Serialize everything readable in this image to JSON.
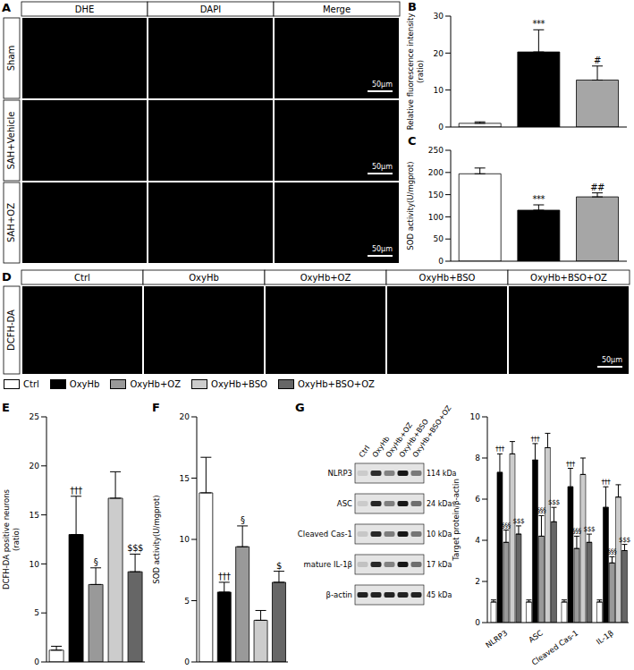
{
  "figure": {
    "A": {
      "panel_label": "A",
      "columns": [
        "DHE",
        "DAPI",
        "Merge"
      ],
      "rows": [
        "Sham",
        "SAH+Vehicle",
        "SAH+OZ"
      ],
      "scale_bar": "50μm"
    },
    "D": {
      "panel_label": "D",
      "row": "DCFH-DA",
      "columns": [
        "Ctrl",
        "OxyHb",
        "OxyHb+OZ",
        "OxyHb+BSO",
        "OxyHb+BSO+OZ"
      ],
      "scale_bar": "50μm"
    },
    "G_blot": {
      "columns": [
        "Ctrl",
        "OxyHb",
        "OxyHb+OZ",
        "OxyHb+BSO",
        "OxyHb+BSO+OZ"
      ],
      "rows": [
        {
          "name": "NLRP3",
          "size": "114 kDa"
        },
        {
          "name": "ASC",
          "size": "24 kDa"
        },
        {
          "name": "Cleaved Cas-1",
          "size": "10 kDa"
        },
        {
          "name": "mature IL-1β",
          "size": "17 kDa"
        },
        {
          "name": "β-actin",
          "size": "45 kDa"
        }
      ]
    }
  },
  "chart_data": [
    {
      "panel_label": "B",
      "type": "bar",
      "ylabel": "Relative fluorescence intensity (ratio)",
      "categories": [
        null,
        null,
        null
      ],
      "values": [
        1.0,
        20.3,
        12.7
      ],
      "errors": [
        0.4,
        6.0,
        3.8
      ],
      "sig_labels": [
        null,
        "***",
        "#"
      ],
      "colors": [
        "#ffffff",
        "#000000",
        "#a6a6a6"
      ],
      "ylim": [
        0,
        30
      ],
      "yticks": [
        0,
        10,
        20,
        30
      ],
      "tick_labels": "y"
    },
    {
      "panel_label": "C",
      "type": "bar",
      "ylabel": "SOD activity(U/mgprot)",
      "categories": [
        null,
        null,
        null
      ],
      "values": [
        197,
        115,
        145
      ],
      "errors": [
        13,
        12,
        9
      ],
      "sig_labels": [
        null,
        "***",
        "##"
      ],
      "colors": [
        "#ffffff",
        "#000000",
        "#a6a6a6"
      ],
      "ylim": [
        0,
        250
      ],
      "yticks": [
        0,
        50,
        100,
        150,
        200,
        250
      ],
      "tick_labels": "y"
    },
    {
      "panel_label": "E",
      "type": "bar",
      "ylabel": "DCFH-DA positive neurons (ratio)",
      "categories": [
        null,
        null,
        null,
        null,
        null
      ],
      "values": [
        1.2,
        13.0,
        7.9,
        16.7,
        9.2
      ],
      "errors": [
        0.4,
        3.9,
        1.7,
        2.7,
        1.8
      ],
      "sig_labels": [
        null,
        "†††",
        "§",
        null,
        "$$$"
      ],
      "colors": [
        "#ffffff",
        "#000000",
        "#999999",
        "#cccccc",
        "#666666"
      ],
      "ylim": [
        0,
        25
      ],
      "yticks": [
        0,
        5,
        10,
        15,
        20,
        25
      ],
      "tick_labels": "y"
    },
    {
      "panel_label": "F",
      "type": "bar",
      "ylabel": "SOD activity(U/mgprot)",
      "categories": [
        null,
        null,
        null,
        null,
        null
      ],
      "values": [
        13.8,
        5.7,
        9.4,
        3.4,
        6.5
      ],
      "errors": [
        2.9,
        0.8,
        1.7,
        0.8,
        0.9
      ],
      "sig_labels": [
        null,
        "†††",
        "§",
        null,
        "$"
      ],
      "colors": [
        "#ffffff",
        "#000000",
        "#999999",
        "#cccccc",
        "#666666"
      ],
      "ylim": [
        0,
        20
      ],
      "yticks": [
        0,
        5,
        10,
        15,
        20
      ],
      "tick_labels": "y"
    },
    {
      "panel_label": "G",
      "type": "bar",
      "ylabel": "Target protein/β-actin",
      "categories": [
        "NLRP3",
        "ASC",
        "Cleaved Cas-1",
        "IL-1β"
      ],
      "series": [
        {
          "name": "Ctrl",
          "color": "#ffffff",
          "values": [
            1.0,
            1.0,
            1.0,
            1.0
          ],
          "errors": [
            0.1,
            0.1,
            0.1,
            0.1
          ],
          "sig_labels": [
            null,
            null,
            null,
            null
          ]
        },
        {
          "name": "OxyHb",
          "color": "#000000",
          "values": [
            7.3,
            7.9,
            6.6,
            5.6
          ],
          "errors": [
            0.9,
            0.8,
            0.9,
            1.0
          ],
          "sig_labels": [
            "†††",
            "†††",
            "†††",
            "†††"
          ]
        },
        {
          "name": "OxyHb+OZ",
          "color": "#999999",
          "values": [
            3.9,
            4.2,
            3.6,
            2.9
          ],
          "errors": [
            0.6,
            1.0,
            0.6,
            0.3
          ],
          "sig_labels": [
            "§§§",
            "§§§",
            "§§§",
            "§§§"
          ]
        },
        {
          "name": "OxyHb+BSO",
          "color": "#cccccc",
          "values": [
            8.2,
            8.5,
            7.2,
            6.1
          ],
          "errors": [
            0.6,
            0.7,
            0.8,
            0.6
          ],
          "sig_labels": [
            null,
            null,
            null,
            null
          ]
        },
        {
          "name": "OxyHb+BSO+OZ",
          "color": "#666666",
          "values": [
            4.3,
            4.9,
            3.9,
            3.5
          ],
          "errors": [
            0.4,
            0.7,
            0.4,
            0.3
          ],
          "sig_labels": [
            "$$$",
            "$$$",
            "$$$",
            "$$$"
          ]
        }
      ],
      "ylim": [
        0,
        10
      ],
      "yticks": [
        0,
        2,
        4,
        6,
        8,
        10
      ],
      "legend": "top"
    }
  ]
}
